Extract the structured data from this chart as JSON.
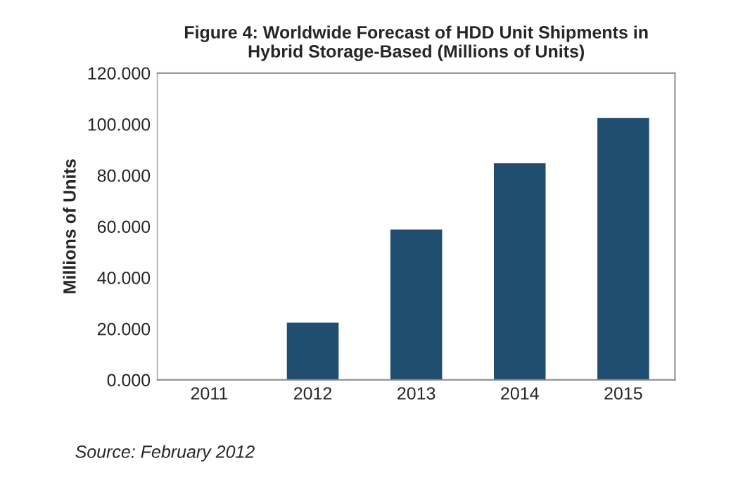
{
  "chart_data": {
    "type": "bar",
    "title": "Figure 4: Worldwide Forecast of HDD Unit Shipments in\nHybrid Storage-Based (Millions of Units)",
    "ylabel": "Millions of Units",
    "categories": [
      "2011",
      "2012",
      "2013",
      "2014",
      "2015"
    ],
    "values": [
      null,
      22.4,
      58.8,
      84.7,
      102.4
    ],
    "color": "#1f4e70",
    "ylim": [
      0,
      120
    ],
    "yticks": [
      {
        "value": 0,
        "label": "0.000"
      },
      {
        "value": 20,
        "label": "20.000"
      },
      {
        "value": 40,
        "label": "40.000"
      },
      {
        "value": 60,
        "label": "60.000"
      },
      {
        "value": 80,
        "label": "80.000"
      },
      {
        "value": 100,
        "label": "100.000"
      },
      {
        "value": 120,
        "label": "120.000"
      }
    ],
    "annotations": [
      "Source: February 2012"
    ]
  }
}
